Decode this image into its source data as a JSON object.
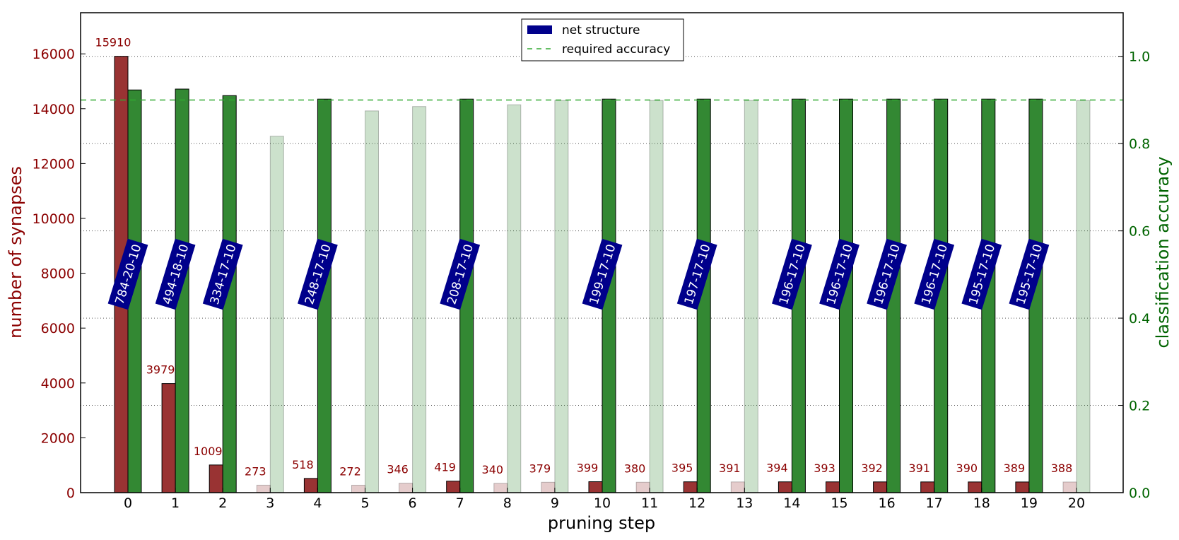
{
  "chart_data": {
    "type": "bar",
    "xlabel": "pruning step",
    "ylabel_left": "number of synapses",
    "ylabel_right": "classification accuracy",
    "x": [
      0,
      1,
      2,
      3,
      4,
      5,
      6,
      7,
      8,
      9,
      10,
      11,
      12,
      13,
      14,
      15,
      16,
      17,
      18,
      19,
      20
    ],
    "ylim_left": [
      0,
      17500
    ],
    "ylim_right": [
      0.0,
      1.1
    ],
    "yticks_left": [
      0,
      2000,
      4000,
      6000,
      8000,
      10000,
      12000,
      14000,
      16000
    ],
    "yticks_right": [
      "0.0",
      "0.2",
      "0.4",
      "0.6",
      "0.8",
      "1.0"
    ],
    "grid": "horizontal dotted",
    "legend_position": "top-center",
    "colors": {
      "synapses": "#993333",
      "accuracy": "#338833",
      "accent_left": "#8b0000",
      "accent_right": "#006400",
      "structure": "#00008b",
      "required": "#33aa33"
    },
    "series": [
      {
        "name": "number of synapses",
        "axis": "left",
        "values": [
          15910,
          3979,
          1009,
          273,
          518,
          272,
          346,
          419,
          340,
          379,
          399,
          380,
          395,
          391,
          394,
          393,
          392,
          391,
          390,
          389,
          388
        ],
        "labels": [
          "15910",
          "3979",
          "1009",
          "273",
          "518",
          "272",
          "346",
          "419",
          "340",
          "379",
          "399",
          "380",
          "395",
          "391",
          "394",
          "393",
          "392",
          "391",
          "390",
          "389",
          "388"
        ]
      },
      {
        "name": "classification accuracy",
        "axis": "right",
        "values": [
          0.923,
          0.925,
          0.91,
          0.817,
          0.902,
          0.875,
          0.885,
          0.902,
          0.889,
          0.899,
          0.902,
          0.899,
          0.902,
          0.899,
          0.902,
          0.902,
          0.902,
          0.902,
          0.902,
          0.902,
          0.899
        ]
      }
    ],
    "accepted": [
      true,
      true,
      true,
      false,
      true,
      false,
      false,
      true,
      false,
      false,
      true,
      false,
      true,
      false,
      true,
      true,
      true,
      true,
      true,
      true,
      false
    ],
    "required_accuracy": 0.9,
    "structures": [
      {
        "step": 0,
        "label": "784-20-10"
      },
      {
        "step": 1,
        "label": "494-18-10"
      },
      {
        "step": 2,
        "label": "334-17-10"
      },
      {
        "step": 4,
        "label": "248-17-10"
      },
      {
        "step": 7,
        "label": "208-17-10"
      },
      {
        "step": 10,
        "label": "199-17-10"
      },
      {
        "step": 12,
        "label": "197-17-10"
      },
      {
        "step": 14,
        "label": "196-17-10"
      },
      {
        "step": 15,
        "label": "196-17-10"
      },
      {
        "step": 16,
        "label": "196-17-10"
      },
      {
        "step": 17,
        "label": "196-17-10"
      },
      {
        "step": 18,
        "label": "195-17-10"
      },
      {
        "step": 19,
        "label": "195-17-10"
      }
    ],
    "legend": [
      "net structure",
      "required accuracy"
    ]
  }
}
